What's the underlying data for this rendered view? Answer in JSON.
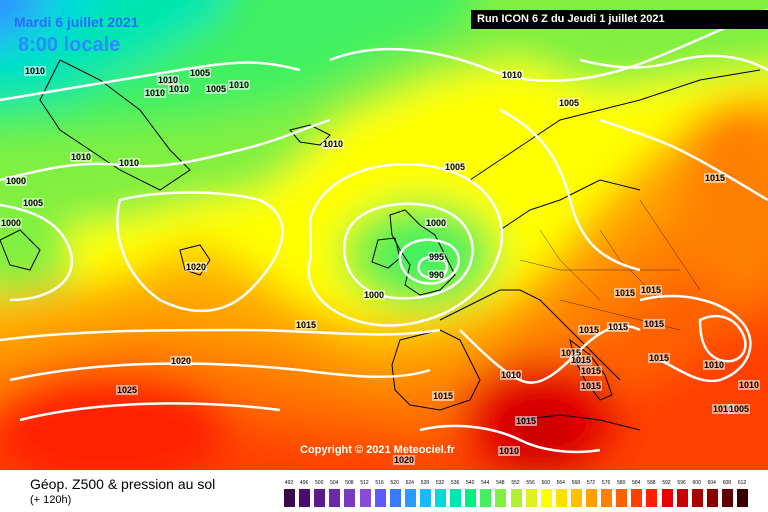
{
  "header": {
    "date": "Mardi 6 juillet 2021",
    "time": "8:00 locale",
    "run": "Run ICON 6 Z du Jeudi 1 juillet 2021"
  },
  "copyright": "Copyright © 2021 Meteociel.fr",
  "footer": {
    "title": "Géop. Z500 & pression au sol",
    "subtitle": "(+ 120h)"
  },
  "scale": {
    "values": [
      "492",
      "496",
      "500",
      "504",
      "508",
      "512",
      "516",
      "520",
      "524",
      "528",
      "532",
      "536",
      "540",
      "544",
      "548",
      "552",
      "556",
      "560",
      "564",
      "568",
      "572",
      "576",
      "580",
      "584",
      "588",
      "592",
      "596",
      "600",
      "604",
      "608",
      "612"
    ],
    "colors": [
      "#3a0a4a",
      "#4c0b6e",
      "#5a1a8c",
      "#6a2aa8",
      "#7a3ac0",
      "#8a4ad8",
      "#5a5aff",
      "#3a7aff",
      "#2a9aff",
      "#1abaff",
      "#00dada",
      "#00e6b0",
      "#00f080",
      "#40f060",
      "#80f040",
      "#b0f030",
      "#e0f020",
      "#ffff00",
      "#ffe000",
      "#ffc000",
      "#ffa000",
      "#ff8000",
      "#ff6000",
      "#ff4000",
      "#ff2000",
      "#e80000",
      "#c80000",
      "#a80000",
      "#880000",
      "#600000",
      "#380000"
    ]
  },
  "colors": {
    "isobar": "#ffffff",
    "coast": "#000000",
    "banner_bg": "#000000"
  },
  "isobars": [
    {
      "id": "l1",
      "text": "1010"
    },
    {
      "id": "l2",
      "text": "1010"
    },
    {
      "id": "l3",
      "text": "1010"
    },
    {
      "id": "l4",
      "text": "1005"
    },
    {
      "id": "l5",
      "text": "1010"
    },
    {
      "id": "l6",
      "text": "1005"
    },
    {
      "id": "l7",
      "text": "1010"
    },
    {
      "id": "l8",
      "text": "1010"
    },
    {
      "id": "l9",
      "text": "1010"
    },
    {
      "id": "l10",
      "text": "1010"
    },
    {
      "id": "l11",
      "text": "1000"
    },
    {
      "id": "l12",
      "text": "1005"
    },
    {
      "id": "l13",
      "text": "1000"
    },
    {
      "id": "l14",
      "text": "1010"
    },
    {
      "id": "l15",
      "text": "1005"
    },
    {
      "id": "l16",
      "text": "1005"
    },
    {
      "id": "l17",
      "text": "1015"
    },
    {
      "id": "l18",
      "text": "1000"
    },
    {
      "id": "l19",
      "text": "995"
    },
    {
      "id": "l20",
      "text": "990"
    },
    {
      "id": "l21",
      "text": "1000"
    },
    {
      "id": "l22",
      "text": "1020"
    },
    {
      "id": "l23",
      "text": "1015"
    },
    {
      "id": "l24",
      "text": "1015"
    },
    {
      "id": "l25",
      "text": "1015"
    },
    {
      "id": "l26",
      "text": "1015"
    },
    {
      "id": "l27",
      "text": "1015"
    },
    {
      "id": "l28",
      "text": "1020"
    },
    {
      "id": "l29",
      "text": "1015"
    },
    {
      "id": "l30",
      "text": "1015"
    },
    {
      "id": "l31",
      "text": "1015"
    },
    {
      "id": "l32",
      "text": "1015"
    },
    {
      "id": "l33",
      "text": "1010"
    },
    {
      "id": "l34",
      "text": "1015"
    },
    {
      "id": "l35",
      "text": "1010"
    },
    {
      "id": "l36",
      "text": "1025"
    },
    {
      "id": "l37",
      "text": "1015"
    },
    {
      "id": "l38",
      "text": "1015"
    },
    {
      "id": "l39",
      "text": "1010"
    },
    {
      "id": "l40",
      "text": "1020"
    },
    {
      "id": "l41",
      "text": "1015"
    },
    {
      "id": "l42",
      "text": "1010"
    },
    {
      "id": "l43",
      "text": "1010"
    },
    {
      "id": "l44",
      "text": "1005"
    }
  ]
}
